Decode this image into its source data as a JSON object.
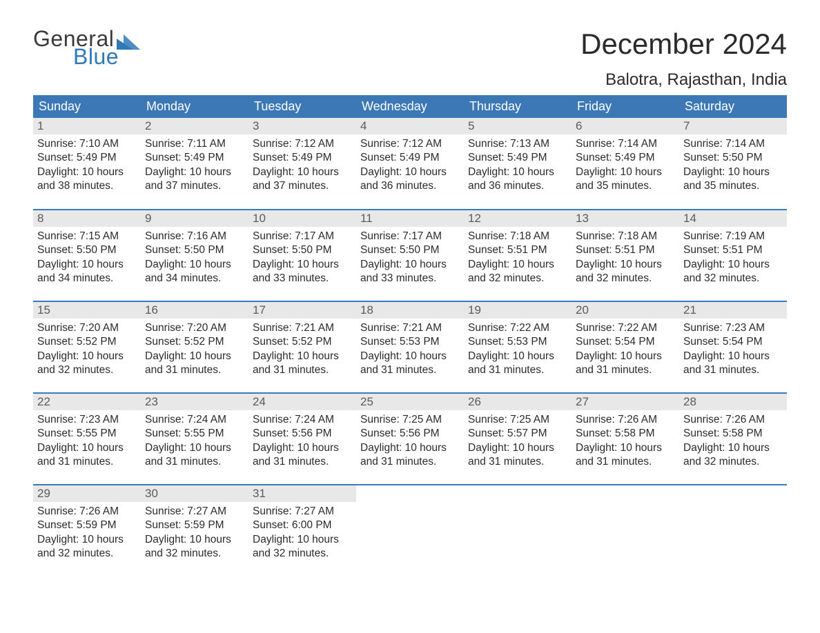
{
  "logo": {
    "general": "General",
    "blue": "Blue"
  },
  "title": "December 2024",
  "location": "Balotra, Rajasthan, India",
  "colors": {
    "header_bg": "#3b78b5",
    "header_text": "#ffffff",
    "daynum_bg": "#e8e8e8",
    "daynum_text": "#5a5a5a",
    "body_text": "#2b2b2b",
    "logo_gray": "#3a3a3a",
    "logo_blue": "#2f79b9",
    "row_sep": "#3b78b5",
    "background": "#ffffff"
  },
  "typography": {
    "title_fontsize": 42,
    "location_fontsize": 24,
    "header_fontsize": 18,
    "daynum_fontsize": 17,
    "daytext_fontsize": 15.5,
    "logo_fontsize": 32
  },
  "weekdays": [
    "Sunday",
    "Monday",
    "Tuesday",
    "Wednesday",
    "Thursday",
    "Friday",
    "Saturday"
  ],
  "labels": {
    "sunrise": "Sunrise:",
    "sunset": "Sunset:",
    "daylight": "Daylight:"
  },
  "weeks": [
    [
      {
        "n": "1",
        "sr": "7:10 AM",
        "ss": "5:49 PM",
        "dl": "10 hours and 38 minutes."
      },
      {
        "n": "2",
        "sr": "7:11 AM",
        "ss": "5:49 PM",
        "dl": "10 hours and 37 minutes."
      },
      {
        "n": "3",
        "sr": "7:12 AM",
        "ss": "5:49 PM",
        "dl": "10 hours and 37 minutes."
      },
      {
        "n": "4",
        "sr": "7:12 AM",
        "ss": "5:49 PM",
        "dl": "10 hours and 36 minutes."
      },
      {
        "n": "5",
        "sr": "7:13 AM",
        "ss": "5:49 PM",
        "dl": "10 hours and 36 minutes."
      },
      {
        "n": "6",
        "sr": "7:14 AM",
        "ss": "5:49 PM",
        "dl": "10 hours and 35 minutes."
      },
      {
        "n": "7",
        "sr": "7:14 AM",
        "ss": "5:50 PM",
        "dl": "10 hours and 35 minutes."
      }
    ],
    [
      {
        "n": "8",
        "sr": "7:15 AM",
        "ss": "5:50 PM",
        "dl": "10 hours and 34 minutes."
      },
      {
        "n": "9",
        "sr": "7:16 AM",
        "ss": "5:50 PM",
        "dl": "10 hours and 34 minutes."
      },
      {
        "n": "10",
        "sr": "7:17 AM",
        "ss": "5:50 PM",
        "dl": "10 hours and 33 minutes."
      },
      {
        "n": "11",
        "sr": "7:17 AM",
        "ss": "5:50 PM",
        "dl": "10 hours and 33 minutes."
      },
      {
        "n": "12",
        "sr": "7:18 AM",
        "ss": "5:51 PM",
        "dl": "10 hours and 32 minutes."
      },
      {
        "n": "13",
        "sr": "7:18 AM",
        "ss": "5:51 PM",
        "dl": "10 hours and 32 minutes."
      },
      {
        "n": "14",
        "sr": "7:19 AM",
        "ss": "5:51 PM",
        "dl": "10 hours and 32 minutes."
      }
    ],
    [
      {
        "n": "15",
        "sr": "7:20 AM",
        "ss": "5:52 PM",
        "dl": "10 hours and 32 minutes."
      },
      {
        "n": "16",
        "sr": "7:20 AM",
        "ss": "5:52 PM",
        "dl": "10 hours and 31 minutes."
      },
      {
        "n": "17",
        "sr": "7:21 AM",
        "ss": "5:52 PM",
        "dl": "10 hours and 31 minutes."
      },
      {
        "n": "18",
        "sr": "7:21 AM",
        "ss": "5:53 PM",
        "dl": "10 hours and 31 minutes."
      },
      {
        "n": "19",
        "sr": "7:22 AM",
        "ss": "5:53 PM",
        "dl": "10 hours and 31 minutes."
      },
      {
        "n": "20",
        "sr": "7:22 AM",
        "ss": "5:54 PM",
        "dl": "10 hours and 31 minutes."
      },
      {
        "n": "21",
        "sr": "7:23 AM",
        "ss": "5:54 PM",
        "dl": "10 hours and 31 minutes."
      }
    ],
    [
      {
        "n": "22",
        "sr": "7:23 AM",
        "ss": "5:55 PM",
        "dl": "10 hours and 31 minutes."
      },
      {
        "n": "23",
        "sr": "7:24 AM",
        "ss": "5:55 PM",
        "dl": "10 hours and 31 minutes."
      },
      {
        "n": "24",
        "sr": "7:24 AM",
        "ss": "5:56 PM",
        "dl": "10 hours and 31 minutes."
      },
      {
        "n": "25",
        "sr": "7:25 AM",
        "ss": "5:56 PM",
        "dl": "10 hours and 31 minutes."
      },
      {
        "n": "26",
        "sr": "7:25 AM",
        "ss": "5:57 PM",
        "dl": "10 hours and 31 minutes."
      },
      {
        "n": "27",
        "sr": "7:26 AM",
        "ss": "5:58 PM",
        "dl": "10 hours and 31 minutes."
      },
      {
        "n": "28",
        "sr": "7:26 AM",
        "ss": "5:58 PM",
        "dl": "10 hours and 32 minutes."
      }
    ],
    [
      {
        "n": "29",
        "sr": "7:26 AM",
        "ss": "5:59 PM",
        "dl": "10 hours and 32 minutes."
      },
      {
        "n": "30",
        "sr": "7:27 AM",
        "ss": "5:59 PM",
        "dl": "10 hours and 32 minutes."
      },
      {
        "n": "31",
        "sr": "7:27 AM",
        "ss": "6:00 PM",
        "dl": "10 hours and 32 minutes."
      },
      null,
      null,
      null,
      null
    ]
  ]
}
